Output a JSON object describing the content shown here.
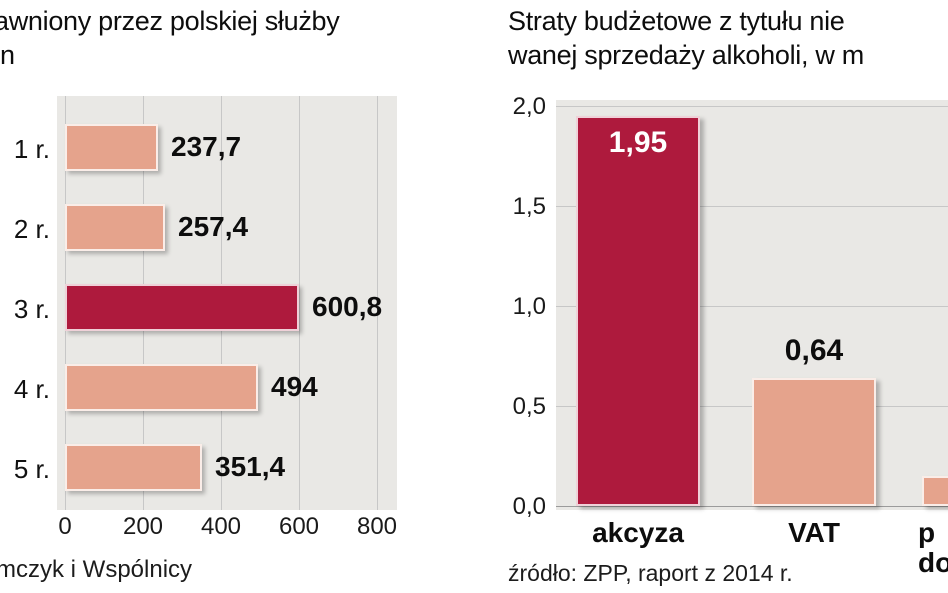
{
  "colors": {
    "bar_light": "#e5a38c",
    "bar_highlight": "#ae1a3d",
    "plot_bg": "#e9e8e5",
    "grid": "#c7c7c7",
    "text": "#111111"
  },
  "left_chart": {
    "title_line1": "awniony przez polskiej służby",
    "title_line2": "n",
    "rows": [
      {
        "label": "1 r.",
        "value_label": "237,7"
      },
      {
        "label": "2 r.",
        "value_label": "257,4"
      },
      {
        "label": "3 r.",
        "value_label": "600,8"
      },
      {
        "label": "4 r.",
        "value_label": "494"
      },
      {
        "label": "5 r.",
        "value_label": "351,4"
      }
    ],
    "x_ticks": [
      "0",
      "200",
      "400",
      "600",
      "800"
    ],
    "source": "mczyk i Wspólnicy"
  },
  "right_chart": {
    "title_line1": "Straty budżetowe z tytułu nie",
    "title_line2": "wanej sprzedaży alkoholi, w m",
    "y_ticks": [
      "2,0",
      "1,5",
      "1,0",
      "0,5",
      "0,0"
    ],
    "bars": [
      {
        "label": "akcyza",
        "value_label": "1,95"
      },
      {
        "label": "VAT",
        "value_label": "0,64"
      },
      {
        "label": "p",
        "label2": "doc",
        "value_label": ""
      }
    ],
    "source": "źródło: ZPP, raport z 2014 r."
  },
  "chart_data": [
    {
      "type": "bar",
      "orientation": "horizontal",
      "title": "awniony przez polskiej służby / n",
      "categories": [
        "1 r.",
        "2 r.",
        "3 r.",
        "4 r.",
        "5 r."
      ],
      "values": [
        237.7,
        257.4,
        600.8,
        494,
        351.4
      ],
      "highlight_index": 2,
      "xlim": [
        0,
        800
      ],
      "x_ticks": [
        0,
        200,
        400,
        600,
        800
      ],
      "grid": true,
      "source": "mczyk i Wspólnicy"
    },
    {
      "type": "bar",
      "orientation": "vertical",
      "title": "Straty budżetowe z tytułu nie / wanej sprzedaży alkoholi, w m",
      "categories": [
        "akcyza",
        "VAT",
        "p doc"
      ],
      "values": [
        1.95,
        0.64,
        0.15
      ],
      "value_labels": [
        "1,95",
        "0,64",
        ""
      ],
      "highlight_index": 0,
      "ylim": [
        0,
        2.0
      ],
      "y_ticks": [
        2.0,
        1.5,
        1.0,
        0.5,
        0.0
      ],
      "grid": true,
      "source": "źródło: ZPP, raport z 2014 r."
    }
  ]
}
